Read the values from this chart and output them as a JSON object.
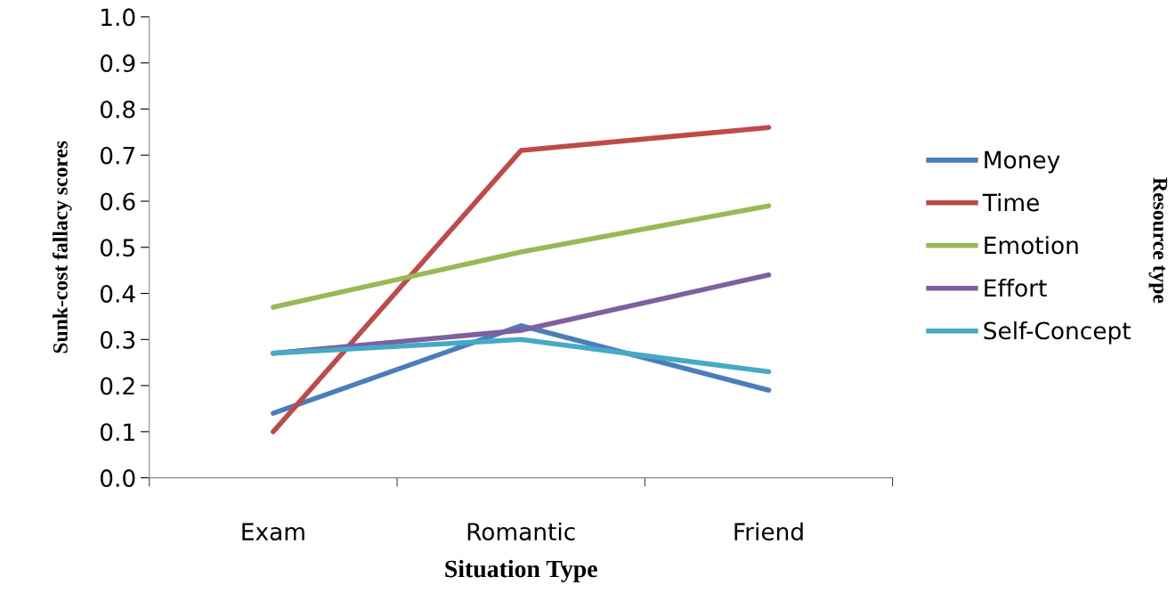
{
  "chart_data": {
    "type": "line",
    "xlabel": "Situation Type",
    "ylabel": "Sunk-cost fallacy scores",
    "legend_title": "Resource type",
    "categories": [
      "Exam",
      "Romantic",
      "Friend"
    ],
    "series": [
      {
        "name": "Money",
        "color": "#4a7ebb",
        "values": [
          0.14,
          0.33,
          0.19
        ]
      },
      {
        "name": "Time",
        "color": "#be4b48",
        "values": [
          0.1,
          0.71,
          0.76
        ]
      },
      {
        "name": "Emotion",
        "color": "#98b954",
        "values": [
          0.37,
          0.49,
          0.59
        ]
      },
      {
        "name": "Effort",
        "color": "#7d60a0",
        "values": [
          0.27,
          0.32,
          0.44
        ]
      },
      {
        "name": "Self-Concept",
        "color": "#46aac5",
        "values": [
          0.27,
          0.3,
          0.23
        ]
      }
    ],
    "ylim": [
      0,
      1.0
    ],
    "yticks": [
      {
        "value": 0,
        "label": "0.0"
      },
      {
        "value": 0.1,
        "label": "0.1"
      },
      {
        "value": 0.2,
        "label": "0.2"
      },
      {
        "value": 0.3,
        "label": "0.3"
      },
      {
        "value": 0.4,
        "label": "0.4"
      },
      {
        "value": 0.5,
        "label": "0.5"
      },
      {
        "value": 0.6,
        "label": "0.6"
      },
      {
        "value": 0.7,
        "label": "0.7"
      },
      {
        "value": 0.8,
        "label": "0.8"
      },
      {
        "value": 0.9,
        "label": "0.9"
      },
      {
        "value": 1.0,
        "label": "1.0"
      }
    ],
    "grid": false,
    "legend": "right",
    "marker": "none",
    "line_style": "solid"
  }
}
